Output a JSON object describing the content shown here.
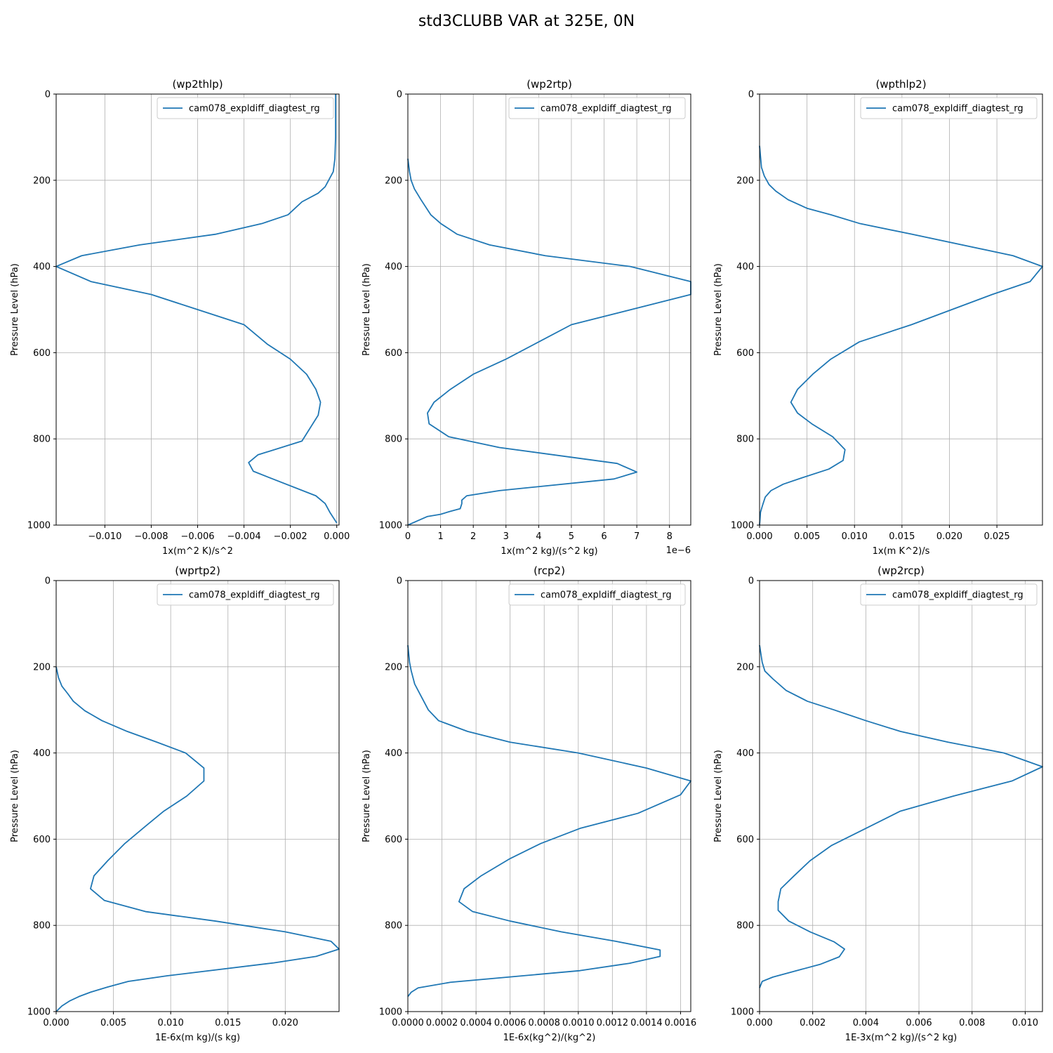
{
  "figure": {
    "title": "std3CLUBB VAR at 325E, 0N"
  },
  "chart_data": [
    {
      "type": "line",
      "title": "(wp2thlp)",
      "xlabel": "1x(m^2 K)/s^2",
      "ylabel": "Pressure Level (hPa)",
      "xlim": [
        -0.0121,
        0.0001
      ],
      "ylim": [
        1000,
        0
      ],
      "xticks": [
        -0.01,
        -0.008,
        -0.006,
        -0.004,
        -0.002,
        0.0
      ],
      "xtick_labels": [
        "−0.010",
        "−0.008",
        "−0.006",
        "−0.004",
        "−0.002",
        "0.000"
      ],
      "yticks": [
        0,
        200,
        400,
        600,
        800,
        1000
      ],
      "xscale_label": "",
      "grid": true,
      "legend_position": "upper-right",
      "series": [
        {
          "name": "cam078_expldiff_diagtest_rg",
          "color": "#1f77b4",
          "x": [
            -5e-05,
            -5e-05,
            -8e-05,
            -0.00015,
            -0.00035,
            -0.0005,
            -0.0008,
            -0.0015,
            -0.0021,
            -0.0032,
            -0.0052,
            -0.0085,
            -0.011,
            -0.0121,
            -0.0106,
            -0.008,
            -0.006,
            -0.004,
            -0.003,
            -0.002,
            -0.0013,
            -0.0009,
            -0.0007,
            -0.0008,
            -0.0015,
            -0.0034,
            -0.0038,
            -0.0036,
            -0.0029,
            -0.0009,
            -0.0005,
            -0.0003,
            0.0
          ],
          "y": [
            0,
            100,
            150,
            180,
            200,
            215,
            230,
            250,
            280,
            300,
            325,
            350,
            375,
            400,
            435,
            465,
            500,
            535,
            580,
            615,
            650,
            685,
            715,
            745,
            805,
            837,
            855,
            875,
            890,
            932,
            950,
            970,
            995
          ]
        }
      ]
    },
    {
      "type": "line",
      "title": "(wp2rtp)",
      "xlabel": "1x(m^2 kg)/(s^2 kg)",
      "ylabel": "Pressure Level (hPa)",
      "xlim": [
        0,
        8.65
      ],
      "ylim": [
        1000,
        0
      ],
      "xticks": [
        0,
        1,
        2,
        3,
        4,
        5,
        6,
        7,
        8
      ],
      "xtick_labels": [
        "0",
        "1",
        "2",
        "3",
        "4",
        "5",
        "6",
        "7",
        "8"
      ],
      "yticks": [
        0,
        200,
        400,
        600,
        800,
        1000
      ],
      "xscale_label": "1e−6",
      "grid": true,
      "legend_position": "upper-right",
      "series": [
        {
          "name": "cam078_expldiff_diagtest_rg",
          "color": "#1f77b4",
          "x": [
            0.0,
            0.05,
            0.1,
            0.2,
            0.4,
            0.7,
            1.0,
            1.5,
            2.5,
            4.2,
            6.8,
            8.65,
            8.65,
            5.0,
            4.0,
            3.0,
            2.0,
            1.3,
            0.8,
            0.6,
            0.65,
            1.25,
            2.8,
            6.4,
            7.0,
            6.3,
            2.8,
            1.8,
            1.65,
            1.65,
            1.6,
            1.3,
            1.0,
            0.6,
            0.3,
            0.0
          ],
          "y": [
            150,
            180,
            200,
            220,
            245,
            280,
            300,
            325,
            350,
            375,
            400,
            435,
            465,
            535,
            575,
            615,
            650,
            685,
            715,
            740,
            765,
            795,
            820,
            857,
            877,
            893,
            920,
            932,
            942,
            950,
            962,
            968,
            975,
            980,
            990,
            1000
          ]
        }
      ]
    },
    {
      "type": "line",
      "title": "(wpthlp2)",
      "xlabel": "1x(m K^2)/s",
      "ylabel": "Pressure Level (hPa)",
      "xlim": [
        0,
        0.0298
      ],
      "ylim": [
        1000,
        0
      ],
      "xticks": [
        0.0,
        0.005,
        0.01,
        0.015,
        0.02,
        0.025
      ],
      "xtick_labels": [
        "0.000",
        "0.005",
        "0.010",
        "0.015",
        "0.020",
        "0.025"
      ],
      "yticks": [
        0,
        200,
        400,
        600,
        800,
        1000
      ],
      "xscale_label": "",
      "grid": true,
      "legend_position": "upper-right",
      "series": [
        {
          "name": "cam078_expldiff_diagtest_rg",
          "color": "#1f77b4",
          "x": [
            0.0,
            0.0002,
            0.0005,
            0.001,
            0.0017,
            0.003,
            0.005,
            0.0075,
            0.0105,
            0.016,
            0.0267,
            0.0298,
            0.0285,
            0.0245,
            0.016,
            0.0105,
            0.0075,
            0.0056,
            0.004,
            0.0033,
            0.004,
            0.0055,
            0.0077,
            0.009,
            0.0088,
            0.0073,
            0.0045,
            0.0025,
            0.0012,
            0.0006,
            0.0003,
            0.0001,
            0.0
          ],
          "y": [
            120,
            170,
            190,
            210,
            225,
            245,
            265,
            280,
            300,
            325,
            375,
            400,
            435,
            465,
            535,
            575,
            615,
            650,
            685,
            715,
            740,
            765,
            795,
            825,
            850,
            870,
            890,
            905,
            920,
            935,
            955,
            970,
            1000
          ]
        }
      ]
    },
    {
      "type": "line",
      "title": "(wprtp2)",
      "xlabel": "1E-6x(m kg)/(s kg)",
      "ylabel": "Pressure Level (hPa)",
      "xlim": [
        0,
        0.0247
      ],
      "ylim": [
        1000,
        0
      ],
      "xticks": [
        0.0,
        0.005,
        0.01,
        0.015,
        0.02
      ],
      "xtick_labels": [
        "0.000",
        "0.005",
        "0.010",
        "0.015",
        "0.020"
      ],
      "yticks": [
        0,
        200,
        400,
        600,
        800,
        1000
      ],
      "xscale_label": "",
      "grid": true,
      "legend_position": "upper-right",
      "series": [
        {
          "name": "cam078_expldiff_diagtest_rg",
          "color": "#1f77b4",
          "x": [
            0.0,
            0.0002,
            0.0005,
            0.001,
            0.0015,
            0.0025,
            0.004,
            0.0062,
            0.0088,
            0.0113,
            0.0129,
            0.0129,
            0.0114,
            0.0094,
            0.0078,
            0.006,
            0.0045,
            0.0033,
            0.003,
            0.0042,
            0.0078,
            0.0139,
            0.02,
            0.024,
            0.0247,
            0.0227,
            0.019,
            0.0097,
            0.0063,
            0.0045,
            0.003,
            0.002,
            0.0012,
            0.0005,
            0.0
          ],
          "y": [
            200,
            225,
            245,
            262,
            280,
            302,
            325,
            350,
            375,
            400,
            435,
            465,
            500,
            535,
            570,
            610,
            650,
            685,
            715,
            742,
            768,
            790,
            815,
            837,
            855,
            872,
            887,
            917,
            930,
            943,
            955,
            965,
            975,
            987,
            1000
          ]
        }
      ]
    },
    {
      "type": "line",
      "title": "(rcp2)",
      "xlabel": "1E-6x(kg^2)/(kg^2)",
      "ylabel": "Pressure Level (hPa)",
      "xlim": [
        0,
        0.00166
      ],
      "ylim": [
        1000,
        0
      ],
      "xticks": [
        0.0,
        0.0002,
        0.0004,
        0.0006,
        0.0008,
        0.001,
        0.0012,
        0.0014,
        0.0016
      ],
      "xtick_labels": [
        "0.0000",
        "0.0002",
        "0.0004",
        "0.0006",
        "0.0008",
        "0.0010",
        "0.0012",
        "0.0014",
        "0.0016"
      ],
      "yticks": [
        0,
        200,
        400,
        600,
        800,
        1000
      ],
      "xscale_label": "",
      "grid": true,
      "legend_position": "upper-right",
      "series": [
        {
          "name": "cam078_expldiff_diagtest_rg",
          "color": "#1f77b4",
          "x": [
            0.0,
            1e-05,
            2e-05,
            4e-05,
            8e-05,
            0.00012,
            0.00018,
            0.00035,
            0.0006,
            0.001,
            0.0014,
            0.00166,
            0.0016,
            0.00135,
            0.00101,
            0.00078,
            0.0006,
            0.00043,
            0.00033,
            0.0003,
            0.00038,
            0.0006,
            0.0009,
            0.00122,
            0.00148,
            0.00148,
            0.0013,
            0.00101,
            0.00025,
            6e-05,
            2e-05,
            0.0
          ],
          "y": [
            150,
            190,
            210,
            240,
            270,
            300,
            325,
            350,
            375,
            400,
            435,
            465,
            497,
            540,
            575,
            610,
            645,
            685,
            715,
            745,
            768,
            790,
            815,
            837,
            857,
            872,
            888,
            905,
            932,
            945,
            955,
            965
          ]
        }
      ]
    },
    {
      "type": "line",
      "title": "(wp2rcp)",
      "xlabel": "1E-3x(m^2 kg)/(s^2 kg)",
      "ylabel": "Pressure Level (hPa)",
      "xlim": [
        0,
        0.01065
      ],
      "ylim": [
        1000,
        0
      ],
      "xticks": [
        0.0,
        0.002,
        0.004,
        0.006,
        0.008,
        0.01
      ],
      "xtick_labels": [
        "0.000",
        "0.002",
        "0.004",
        "0.006",
        "0.008",
        "0.010"
      ],
      "yticks": [
        0,
        200,
        400,
        600,
        800,
        1000
      ],
      "xscale_label": "",
      "grid": true,
      "legend_position": "upper-right",
      "series": [
        {
          "name": "cam078_expldiff_diagtest_rg",
          "color": "#1f77b4",
          "x": [
            0.0,
            5e-05,
            0.0001,
            0.0002,
            0.0005,
            0.001,
            0.0018,
            0.0028,
            0.004,
            0.0053,
            0.0071,
            0.0092,
            0.01065,
            0.0095,
            0.0073,
            0.0053,
            0.004,
            0.0027,
            0.0019,
            0.0013,
            0.0008,
            0.0007,
            0.0007,
            0.0011,
            0.0019,
            0.0028,
            0.0032,
            0.003,
            0.0023,
            0.0005,
            0.0001,
            0.0
          ],
          "y": [
            150,
            170,
            190,
            210,
            228,
            255,
            280,
            300,
            325,
            350,
            375,
            400,
            432,
            465,
            500,
            535,
            575,
            615,
            650,
            685,
            715,
            745,
            765,
            790,
            815,
            838,
            855,
            873,
            890,
            920,
            930,
            945
          ]
        }
      ]
    }
  ]
}
